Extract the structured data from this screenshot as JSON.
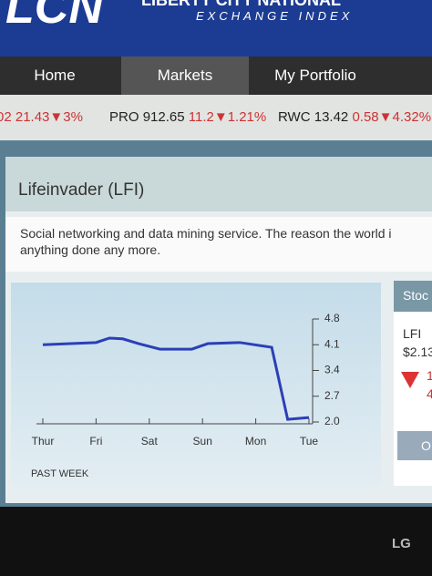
{
  "header": {
    "logo": "LCN",
    "name": "LIBERTY CITY NATIONAL",
    "subtitle": "EXCHANGE INDEX"
  },
  "nav": [
    "Home",
    "Markets",
    "My Portfolio"
  ],
  "ticker": [
    {
      "price": "02 21.43",
      "change": "3%"
    },
    {
      "symbol": "PRO",
      "price": "912.65",
      "change": "11.2",
      "percent": "1.21%"
    },
    {
      "symbol": "RWC",
      "price": "13.42",
      "change": "0.58",
      "percent": "4.32%"
    }
  ],
  "stock": {
    "title": "Lifeinvader (LFI)",
    "description": [
      "Social networking and data mining service. The reason the world i",
      "anything done any more."
    ]
  },
  "chart_data": {
    "type": "line",
    "x": [
      0,
      1,
      1.25,
      1.5,
      1.8,
      2.2,
      2.8,
      3.1,
      3.7,
      4.3,
      4.6,
      5
    ],
    "values": [
      4.1,
      4.16,
      4.28,
      4.26,
      4.13,
      3.98,
      3.98,
      4.13,
      4.16,
      4.03,
      2.07,
      2.12
    ],
    "color": "#2b3fb8",
    "xlim": [
      0,
      5
    ],
    "xticks": [
      {
        "value": 0,
        "label": "Thur"
      },
      {
        "value": 1,
        "label": "Fri"
      },
      {
        "value": 2,
        "label": "Sat"
      },
      {
        "value": 3,
        "label": "Sun"
      },
      {
        "value": 4,
        "label": "Mon"
      },
      {
        "value": 5,
        "label": "Tue"
      }
    ],
    "ylim": [
      2,
      4.8
    ],
    "yticks": [
      {
        "value": 2,
        "label": "2.0"
      },
      2.7,
      3.4,
      4.1,
      4.8
    ],
    "note": "PAST WEEK"
  },
  "side": {
    "header": "Stoc",
    "symbol": "LFI",
    "price": "$2.13",
    "change": "1",
    "percent": "4",
    "button": "O"
  },
  "bezel": {
    "brand": "LG"
  }
}
